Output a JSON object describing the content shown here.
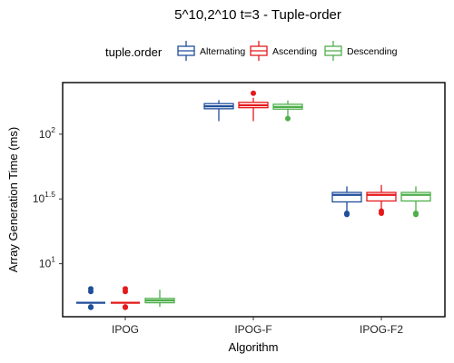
{
  "chart_data": {
    "type": "box",
    "title": "5^10,2^10 t=3 - Tuple-order",
    "xlabel": "Algorithm",
    "ylabel": "Array Generation Time (ms)",
    "yscale": "log10",
    "ylim": [
      3.9,
      250
    ],
    "categories": [
      "IPOG",
      "IPOG-F",
      "IPOG-F2"
    ],
    "legend": {
      "title": "tuple.order",
      "position": "top"
    },
    "yticks": [
      {
        "base": "10",
        "exp": "1",
        "value": 10
      },
      {
        "base": "10",
        "exp": "1.5",
        "value": 31.62
      },
      {
        "base": "10",
        "exp": "2",
        "value": 100
      }
    ],
    "series": [
      {
        "name": "Alternating",
        "color": "#1f4e9a",
        "boxes": [
          {
            "category": "IPOG",
            "whisker_low": 5.0,
            "q1": 5.0,
            "median": 5.0,
            "q3": 5.0,
            "whisker_high": 5.0,
            "outliers": [
              4.6,
              4.65,
              6.1,
              6.4
            ]
          },
          {
            "category": "IPOG-F",
            "whisker_low": 126,
            "q1": 157,
            "median": 164,
            "q3": 172,
            "whisker_high": 183,
            "outliers": []
          },
          {
            "category": "IPOG-F2",
            "whisker_low": 25.5,
            "q1": 30.0,
            "median": 34.0,
            "q3": 35.5,
            "whisker_high": 39.5,
            "outliers": [
              24.0,
              24.5
            ]
          }
        ]
      },
      {
        "name": "Ascending",
        "color": "#e41a1c",
        "boxes": [
          {
            "category": "IPOG",
            "whisker_low": 5.0,
            "q1": 5.0,
            "median": 5.0,
            "q3": 5.0,
            "whisker_high": 5.0,
            "outliers": [
              4.6,
              4.65,
              6.1,
              6.4
            ]
          },
          {
            "category": "IPOG-F",
            "whisker_low": 126,
            "q1": 160,
            "median": 167,
            "q3": 176,
            "whisker_high": 191,
            "outliers": [
              207
            ]
          },
          {
            "category": "IPOG-F2",
            "whisker_low": 26.5,
            "q1": 30.5,
            "median": 34.0,
            "q3": 35.5,
            "whisker_high": 40.5,
            "outliers": [
              24.5,
              25.5
            ]
          }
        ]
      },
      {
        "name": "Descending",
        "color": "#4daf4a",
        "boxes": [
          {
            "category": "IPOG",
            "whisker_low": 4.65,
            "q1": 5.0,
            "median": 5.2,
            "q3": 5.4,
            "whisker_high": 6.3,
            "outliers": []
          },
          {
            "category": "IPOG-F",
            "whisker_low": 136,
            "q1": 156,
            "median": 162,
            "q3": 170,
            "whisker_high": 182,
            "outliers": [
              132
            ]
          },
          {
            "category": "IPOG-F2",
            "whisker_low": 25.5,
            "q1": 30.5,
            "median": 34.0,
            "q3": 35.5,
            "whisker_high": 39.5,
            "outliers": [
              24.0,
              24.5
            ]
          }
        ]
      }
    ]
  }
}
